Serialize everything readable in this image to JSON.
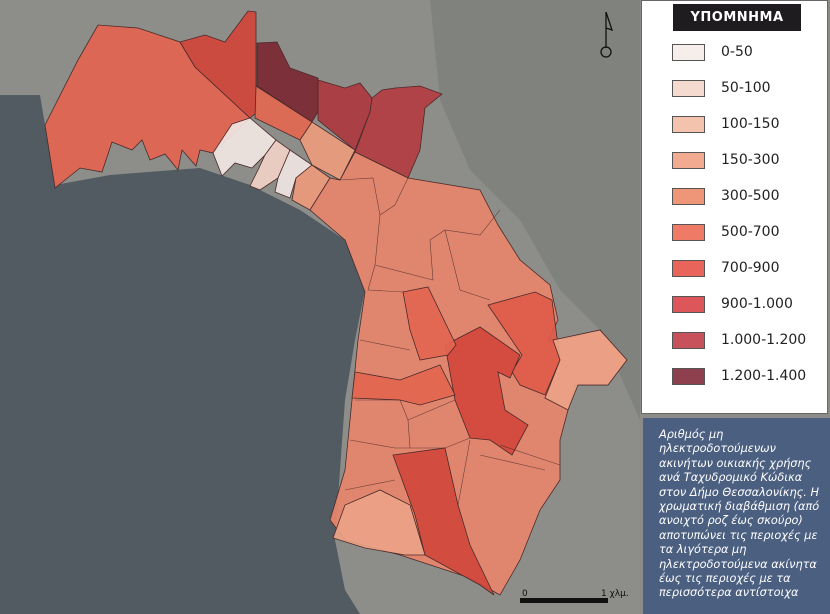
{
  "legend": {
    "title": "ΥΠΟΜΝΗΜΑ",
    "classes": [
      {
        "label": "0-50",
        "color": "#f6eeea"
      },
      {
        "label": "50-100",
        "color": "#f5dacf"
      },
      {
        "label": "100-150",
        "color": "#f4c3ad"
      },
      {
        "label": "150-300",
        "color": "#f2ab90"
      },
      {
        "label": "300-500",
        "color": "#ef9578"
      },
      {
        "label": "500-700",
        "color": "#ef7b66"
      },
      {
        "label": "700-900",
        "color": "#e9645b"
      },
      {
        "label": "900-1.000",
        "color": "#dd5659"
      },
      {
        "label": "1.000-1.200",
        "color": "#c8525b"
      },
      {
        "label": "1.200-1.400",
        "color": "#8e404f"
      }
    ]
  },
  "description": "Αριθμός μη ηλεκτροδοτούμενων ακινήτων οικιακής χρήσης ανά Ταχυδρομικό Κώδικα στον Δήμο Θεσσαλονίκης. Η χρωματική διαβάθμιση (από ανοιχτό ροζ έως σκούρο) αποτυπώνει τις περιοχές με τα λιγότερα μη ηλεκτροδοτούμενα ακίνητα έως τις περιοχές με τα περισσότερα αντίστοιχα",
  "scale_bar": {
    "start": "0",
    "end": "1 χλμ."
  },
  "north_arrow": "north-arrow-icon",
  "colors": {
    "water": "#525a62",
    "land": "#8d8e89",
    "description_bg": "#4b5f80"
  }
}
